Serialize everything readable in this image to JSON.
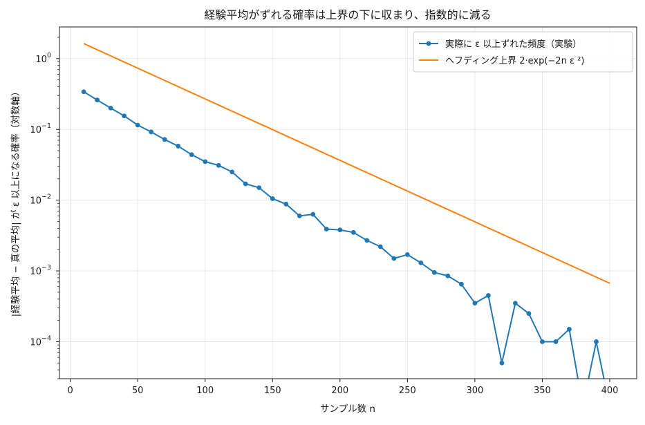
{
  "chart_data": {
    "type": "line",
    "title": "経験平均がずれる確率は上界の下に収まり、指数的に減る",
    "xlabel": "サンプル数 n",
    "ylabel": "|経験平均 − 真の平均| が ε 以上になる確率（対数軸）",
    "xlim": [
      -8,
      420
    ],
    "ylim": [
      3e-05,
      2.8
    ],
    "yscale": "log",
    "grid": true,
    "legend_position": "top-right",
    "x_ticks": [
      0,
      50,
      100,
      150,
      200,
      250,
      300,
      350,
      400
    ],
    "y_ticks": [
      {
        "value": 1,
        "base": "10",
        "exp": "0"
      },
      {
        "value": 0.1,
        "base": "10",
        "exp": "−1"
      },
      {
        "value": 0.01,
        "base": "10",
        "exp": "−2"
      },
      {
        "value": 0.001,
        "base": "10",
        "exp": "−3"
      },
      {
        "value": 0.0001,
        "base": "10",
        "exp": "−4"
      }
    ],
    "series": [
      {
        "name": "実際に ε 以上ずれた頻度（実験）",
        "color": "#1f77b4",
        "marker": "circle",
        "x": [
          10,
          20,
          30,
          40,
          50,
          60,
          70,
          80,
          90,
          100,
          110,
          120,
          130,
          140,
          150,
          160,
          170,
          180,
          190,
          200,
          210,
          220,
          230,
          240,
          250,
          260,
          270,
          280,
          290,
          300,
          310,
          320,
          330,
          340,
          350,
          360,
          370,
          380,
          390,
          400
        ],
        "y": [
          0.34,
          0.26,
          0.2,
          0.155,
          0.115,
          0.092,
          0.072,
          0.058,
          0.044,
          0.035,
          0.031,
          0.025,
          0.017,
          0.015,
          0.0105,
          0.0088,
          0.006,
          0.0063,
          0.0039,
          0.0038,
          0.0035,
          0.0027,
          0.0022,
          0.0015,
          0.0017,
          0.0013,
          0.00095,
          0.00085,
          0.00065,
          0.00035,
          0.00045,
          5e-05,
          0.00035,
          0.00025,
          0.0001,
          0.0001,
          0.00015,
          0,
          0.0001,
          0
        ]
      },
      {
        "name": "ヘフディング上界 2·exp(−2n ε ²)",
        "color": "#ff7f0e",
        "marker": "none",
        "x": [
          10,
          400
        ],
        "y": [
          1.63,
          0.00067
        ]
      }
    ]
  }
}
